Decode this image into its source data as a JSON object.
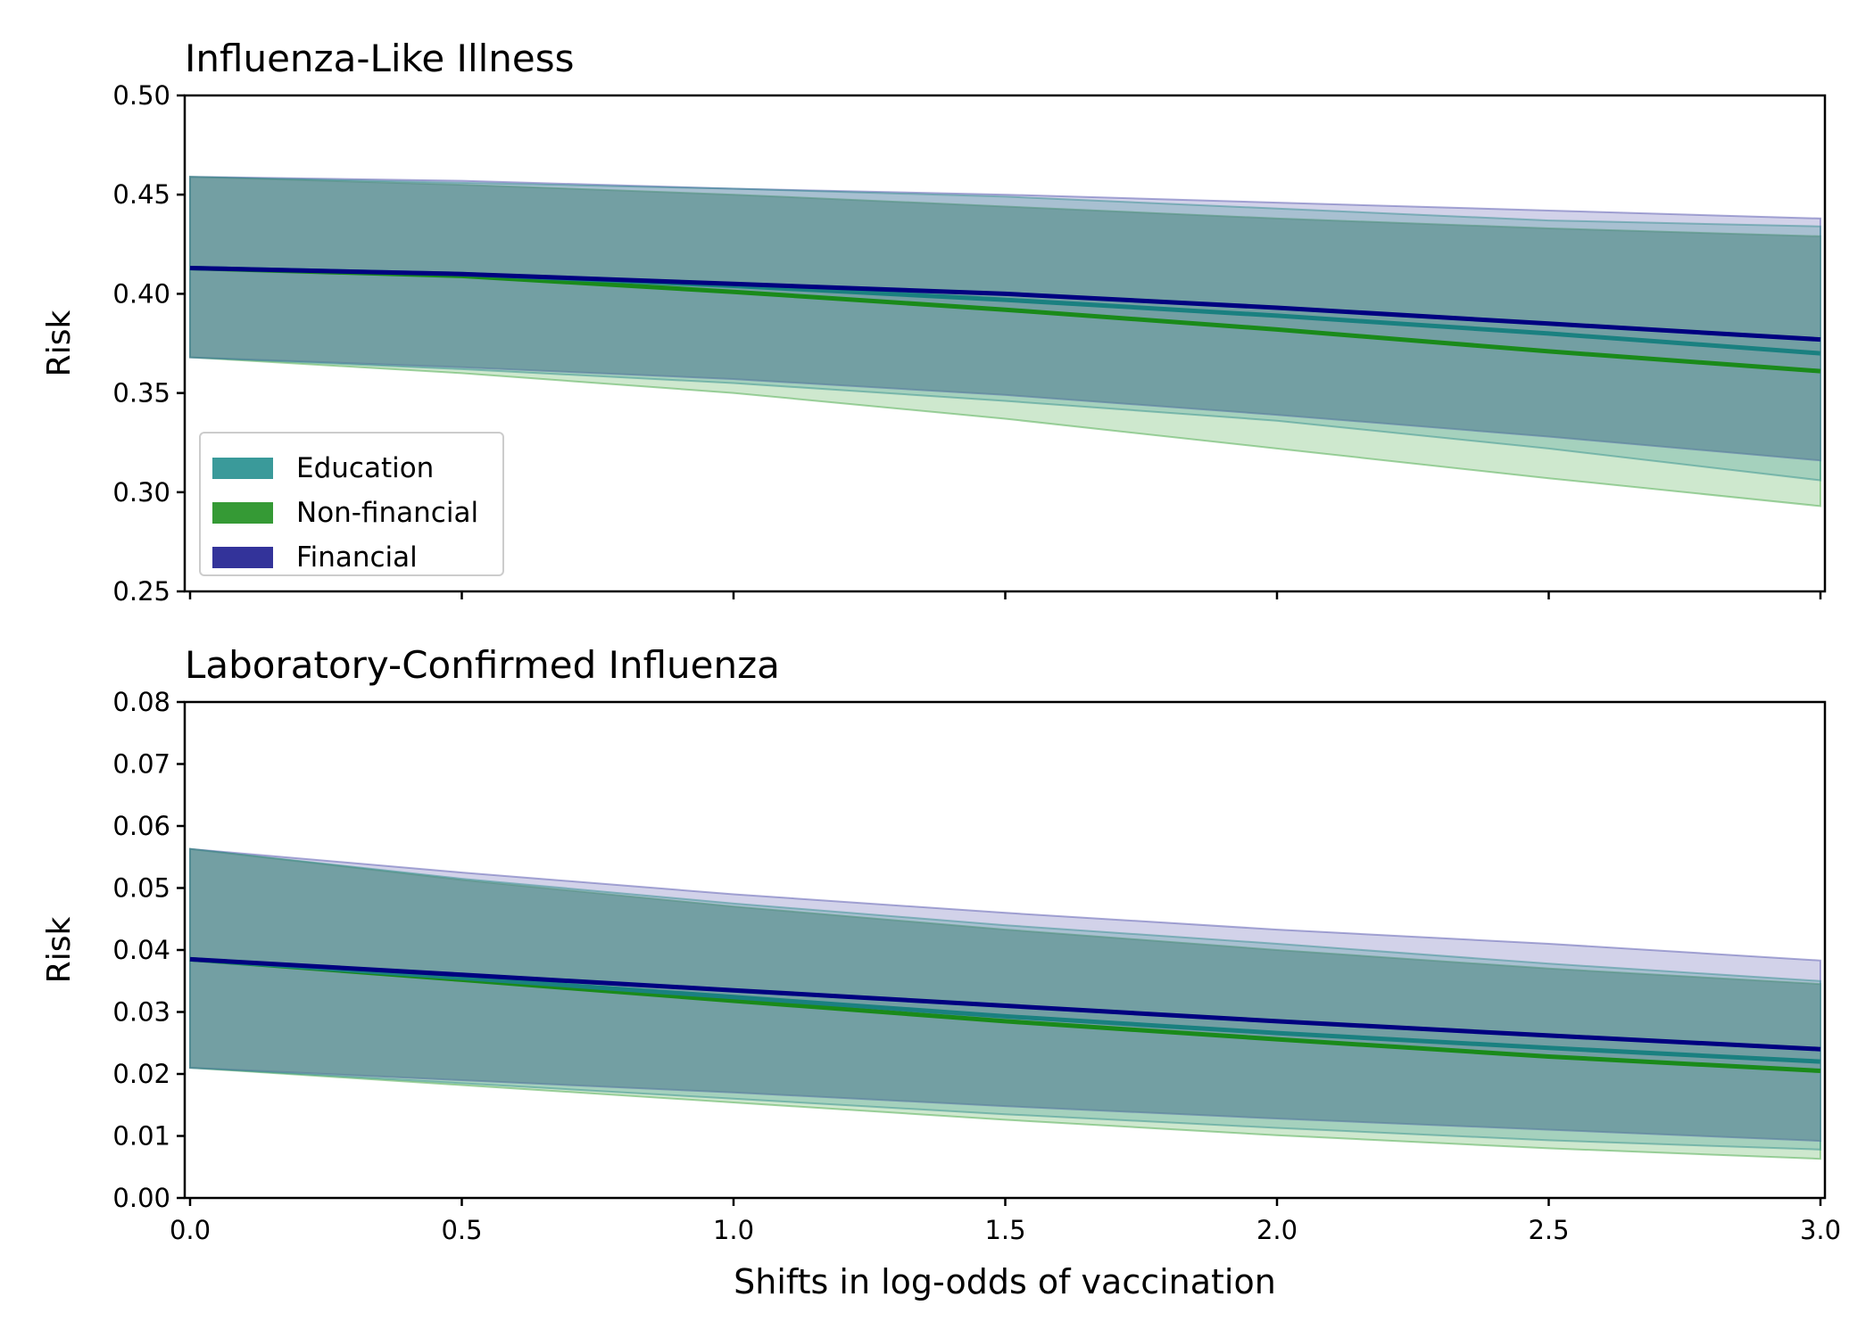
{
  "chart_data": [
    {
      "type": "line",
      "title": "Influenza-Like Illness",
      "xlabel": "",
      "ylabel": "Risk",
      "xlim": [
        0,
        3
      ],
      "ylim": [
        0.25,
        0.5
      ],
      "yticks": [
        "0.25",
        "0.30",
        "0.35",
        "0.40",
        "0.45",
        "0.50"
      ],
      "grid": false,
      "legend_position": "lower-left",
      "x": [
        0,
        0.5,
        1.0,
        1.5,
        2.0,
        2.5,
        3.0
      ],
      "series": [
        {
          "name": "Education",
          "color": "#1a8080",
          "values": [
            0.413,
            0.41,
            0.404,
            0.397,
            0.389,
            0.38,
            0.37
          ],
          "lower": [
            0.368,
            0.362,
            0.355,
            0.346,
            0.336,
            0.322,
            0.306
          ],
          "upper": [
            0.459,
            0.456,
            0.453,
            0.449,
            0.443,
            0.437,
            0.434
          ]
        },
        {
          "name": "Non-financial",
          "color": "#1a8a1a",
          "values": [
            0.413,
            0.409,
            0.401,
            0.392,
            0.382,
            0.371,
            0.361
          ],
          "lower": [
            0.368,
            0.36,
            0.35,
            0.337,
            0.322,
            0.307,
            0.293
          ],
          "upper": [
            0.459,
            0.455,
            0.45,
            0.444,
            0.438,
            0.433,
            0.429
          ]
        },
        {
          "name": "Financial",
          "color": "#000080",
          "values": [
            0.413,
            0.41,
            0.405,
            0.4,
            0.393,
            0.385,
            0.377
          ],
          "lower": [
            0.368,
            0.363,
            0.357,
            0.349,
            0.339,
            0.328,
            0.316
          ],
          "upper": [
            0.459,
            0.457,
            0.453,
            0.45,
            0.446,
            0.442,
            0.438
          ]
        }
      ]
    },
    {
      "type": "line",
      "title": "Laboratory-Confirmed Influenza",
      "xlabel": "Shifts in log-odds of vaccination",
      "ylabel": "Risk",
      "xlim": [
        0,
        3
      ],
      "ylim": [
        0.0,
        0.08
      ],
      "yticks": [
        "0.00",
        "0.01",
        "0.02",
        "0.03",
        "0.04",
        "0.05",
        "0.06",
        "0.07",
        "0.08"
      ],
      "xticks": [
        "0.0",
        "0.5",
        "1.0",
        "1.5",
        "2.0",
        "2.5",
        "3.0"
      ],
      "grid": false,
      "x": [
        0,
        0.5,
        1.0,
        1.5,
        2.0,
        2.5,
        3.0
      ],
      "series": [
        {
          "name": "Education",
          "color": "#1a8080",
          "values": [
            0.0385,
            0.0355,
            0.0324,
            0.0293,
            0.0266,
            0.0242,
            0.022
          ],
          "lower": [
            0.021,
            0.0185,
            0.016,
            0.0135,
            0.0113,
            0.0093,
            0.0078
          ],
          "upper": [
            0.0563,
            0.0515,
            0.0475,
            0.044,
            0.041,
            0.0378,
            0.035
          ]
        },
        {
          "name": "Non-financial",
          "color": "#1a8a1a",
          "values": [
            0.0385,
            0.0352,
            0.0318,
            0.0285,
            0.0256,
            0.0228,
            0.0205
          ],
          "lower": [
            0.021,
            0.0182,
            0.0154,
            0.0126,
            0.0101,
            0.008,
            0.0063
          ],
          "upper": [
            0.0563,
            0.0513,
            0.047,
            0.0433,
            0.04,
            0.037,
            0.0345
          ]
        },
        {
          "name": "Financial",
          "color": "#000080",
          "values": [
            0.0385,
            0.036,
            0.0335,
            0.031,
            0.0285,
            0.0262,
            0.024
          ],
          "lower": [
            0.021,
            0.019,
            0.017,
            0.0148,
            0.0128,
            0.011,
            0.0092
          ],
          "upper": [
            0.0563,
            0.0525,
            0.049,
            0.046,
            0.0433,
            0.041,
            0.0383
          ]
        }
      ]
    }
  ]
}
